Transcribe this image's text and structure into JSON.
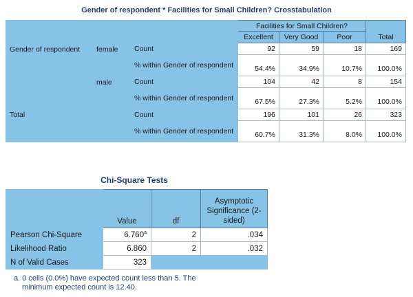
{
  "crosstab": {
    "title": "Gender of respondent * Facilities for Small Children? Crosstabulation",
    "header": {
      "group": "Facilities for Small Children?",
      "columns": [
        "Excellent",
        "Very Good",
        "Poor"
      ],
      "total": "Total"
    },
    "rows": [
      {
        "row_label": "Gender of respondent",
        "group": "female",
        "count_label": "Count",
        "count": [
          "92",
          "59",
          "18",
          "169"
        ],
        "pct_label": "% within Gender of respondent",
        "pct": [
          "54.4%",
          "34.9%",
          "10.7%",
          "100.0%"
        ]
      },
      {
        "row_label": "",
        "group": "male",
        "count_label": "Count",
        "count": [
          "104",
          "42",
          "8",
          "154"
        ],
        "pct_label": "% within Gender of respondent",
        "pct": [
          "67.5%",
          "27.3%",
          "5.2%",
          "100.0%"
        ]
      },
      {
        "row_label": "Total",
        "group": "",
        "count_label": "Count",
        "count": [
          "196",
          "101",
          "26",
          "323"
        ],
        "pct_label": "% within Gender of respondent",
        "pct": [
          "60.7%",
          "31.3%",
          "8.0%",
          "100.0%"
        ]
      }
    ]
  },
  "chisq": {
    "title": "Chi-Square Tests",
    "headers": {
      "value": "Value",
      "df": "df",
      "sig": "Asymptotic Significance (2-sided)"
    },
    "rows": [
      {
        "label": "Pearson Chi-Square",
        "value": "6.760",
        "sup": "a",
        "df": "2",
        "sig": ".034"
      },
      {
        "label": "Likelihood Ratio",
        "value": "6.860",
        "sup": "",
        "df": "2",
        "sig": ".032"
      },
      {
        "label": "N of Valid Cases",
        "value": "323",
        "sup": "",
        "df": "",
        "sig": ""
      }
    ],
    "footnote_line1": "a. 0 cells (0.0%) have expected count less than 5. The",
    "footnote_line2": "minimum expected count is 12.40."
  }
}
